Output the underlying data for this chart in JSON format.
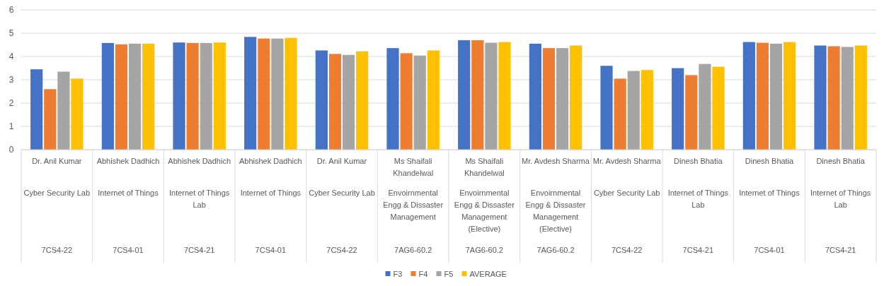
{
  "chart_data": {
    "type": "bar",
    "categories": [
      "Dr. Anil Kumar\nCyber Security Lab\n7CS4-22",
      "Abhishek Dadhich\nInternet of Things\n7CS4-01",
      "Abhishek Dadhich\nInternet of Things Lab\n7CS4-21",
      "Abhishek Dadhich\nInternet of Things\n7CS4-01",
      "Dr. Anil Kumar\nCyber Security Lab\n7CS4-22",
      "Ms Shaifali Khandelwal\nEnvoirnmental Engg & Dissaster Management\n7AG6-60.2",
      "Ms Shaifali Khandelwal\nEnvoirnmental Engg & Dissaster Management (Elective)\n7AG6-60.2",
      "Mr. Avdesh Sharma\nEnvoirnmental Engg & Dissaster Management (Elective)\n7AG6-60.2",
      "Mr. Avdesh Sharma\nCyber Security Lab\n7CS4-22",
      "Dinesh Bhatia\nInternet of Things Lab\n7CS4-21",
      "Dinesh Bhatia\nInternet of Things\n7CS4-01",
      "Dinesh Bhatia\nInternet of Things Lab\n7CS4-21"
    ],
    "series": [
      {
        "name": "F3",
        "color": "#4472c4",
        "values": [
          3.45,
          4.58,
          4.6,
          4.84,
          4.26,
          4.36,
          4.7,
          4.55,
          3.6,
          3.5,
          4.62,
          4.47
        ]
      },
      {
        "name": "F4",
        "color": "#ed7d31",
        "values": [
          2.6,
          4.52,
          4.58,
          4.77,
          4.11,
          4.14,
          4.7,
          4.36,
          3.05,
          3.2,
          4.59,
          4.44
        ]
      },
      {
        "name": "F5",
        "color": "#a5a5a5",
        "values": [
          3.35,
          4.55,
          4.58,
          4.77,
          4.07,
          4.04,
          4.59,
          4.36,
          3.38,
          3.68,
          4.55,
          4.41
        ]
      },
      {
        "name": "AVERAGE",
        "color": "#ffc000",
        "values": [
          3.05,
          4.55,
          4.6,
          4.8,
          4.22,
          4.26,
          4.62,
          4.47,
          3.42,
          3.56,
          4.62,
          4.47
        ]
      }
    ],
    "ylim": [
      0,
      6
    ],
    "yticks": [
      0,
      1,
      2,
      3,
      4,
      5,
      6
    ],
    "grid": true,
    "legend": "bottom"
  }
}
